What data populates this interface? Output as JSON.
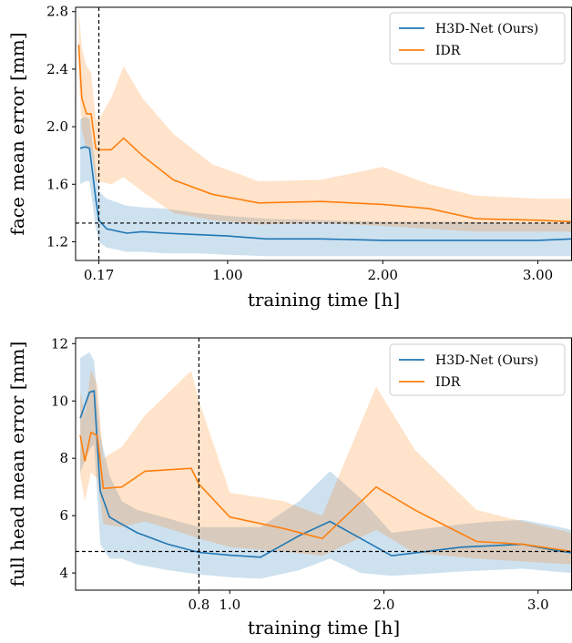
{
  "chart_data": [
    {
      "type": "line",
      "xlabel": "training time [h]",
      "ylabel": "face mean error [mm]",
      "xlim": [
        0.02,
        3.22
      ],
      "ylim": [
        1.07,
        2.83
      ],
      "xticks": [
        0.17,
        1.0,
        2.0,
        3.0
      ],
      "xtick_labels": [
        "0.17",
        "1.00",
        "2.00",
        "3.00"
      ],
      "yticks": [
        1.2,
        1.6,
        2.0,
        2.4,
        2.8
      ],
      "ytick_labels": [
        "1.2",
        "1.6",
        "2.0",
        "2.4",
        "2.8"
      ],
      "vline_x": 0.17,
      "hline_y": 1.33,
      "legend_position": "top-right",
      "series": [
        {
          "name": "H3D-Net (Ours)",
          "color": "#1f77b4",
          "x": [
            0.05,
            0.08,
            0.11,
            0.15,
            0.17,
            0.22,
            0.35,
            0.45,
            0.6,
            0.8,
            1.0,
            1.25,
            1.6,
            2.0,
            2.5,
            3.0,
            3.22
          ],
          "y": [
            1.85,
            1.86,
            1.85,
            1.5,
            1.35,
            1.29,
            1.26,
            1.27,
            1.26,
            1.25,
            1.24,
            1.22,
            1.22,
            1.21,
            1.21,
            1.21,
            1.22
          ],
          "lower": [
            1.6,
            1.62,
            1.62,
            1.3,
            1.2,
            1.16,
            1.13,
            1.13,
            1.12,
            1.12,
            1.11,
            1.1,
            1.1,
            1.1,
            1.1,
            1.1,
            1.1
          ],
          "upper": [
            2.05,
            2.07,
            2.05,
            1.7,
            1.55,
            1.5,
            1.45,
            1.44,
            1.43,
            1.4,
            1.38,
            1.36,
            1.35,
            1.34,
            1.34,
            1.33,
            1.33
          ]
        },
        {
          "name": "IDR",
          "color": "#ff7f0e",
          "x": [
            0.04,
            0.06,
            0.09,
            0.12,
            0.15,
            0.17,
            0.25,
            0.33,
            0.45,
            0.65,
            0.9,
            1.2,
            1.6,
            2.0,
            2.3,
            2.6,
            3.0,
            3.22
          ],
          "y": [
            2.57,
            2.2,
            2.09,
            2.09,
            1.85,
            1.84,
            1.84,
            1.92,
            1.8,
            1.63,
            1.53,
            1.47,
            1.48,
            1.46,
            1.43,
            1.36,
            1.35,
            1.34
          ],
          "lower": [
            2.35,
            1.98,
            1.85,
            1.85,
            1.62,
            1.62,
            1.6,
            1.65,
            1.55,
            1.4,
            1.35,
            1.32,
            1.33,
            1.31,
            1.29,
            1.27,
            1.27,
            1.27
          ],
          "upper": [
            2.82,
            2.55,
            2.42,
            2.38,
            2.05,
            2.05,
            2.2,
            2.42,
            2.2,
            1.95,
            1.74,
            1.62,
            1.63,
            1.72,
            1.6,
            1.52,
            1.5,
            1.5
          ]
        }
      ]
    },
    {
      "type": "line",
      "xlabel": "training time [h]",
      "ylabel": "full head mean error [mm]",
      "xlim": [
        0.0,
        3.22
      ],
      "ylim": [
        3.4,
        12.2
      ],
      "xticks": [
        0.8,
        1.0,
        2.0,
        3.0
      ],
      "xtick_labels": [
        "0.8",
        "1.0",
        "2.0",
        "3.0"
      ],
      "yticks": [
        4,
        6,
        8,
        10,
        12
      ],
      "ytick_labels": [
        "4",
        "6",
        "8",
        "10",
        "12"
      ],
      "vline_x": 0.8,
      "hline_y": 4.75,
      "legend_position": "top-right",
      "series": [
        {
          "name": "H3D-Net (Ours)",
          "color": "#1f77b4",
          "x": [
            0.03,
            0.09,
            0.12,
            0.16,
            0.22,
            0.3,
            0.4,
            0.6,
            0.8,
            1.0,
            1.2,
            1.45,
            1.65,
            1.85,
            2.05,
            2.2,
            2.5,
            2.7,
            2.9,
            3.1,
            3.22
          ],
          "y": [
            9.4,
            10.3,
            10.35,
            6.85,
            5.95,
            5.7,
            5.4,
            5.0,
            4.72,
            4.62,
            4.55,
            5.3,
            5.8,
            5.2,
            4.6,
            4.7,
            4.9,
            4.95,
            5.0,
            4.8,
            4.7
          ],
          "lower": [
            7.5,
            8.3,
            8.5,
            5.0,
            4.5,
            4.5,
            4.3,
            4.1,
            3.95,
            3.85,
            3.8,
            4.1,
            4.5,
            4.0,
            3.9,
            3.95,
            4.05,
            4.1,
            4.15,
            4.05,
            4.0
          ],
          "upper": [
            11.5,
            11.7,
            11.4,
            8.8,
            7.4,
            6.5,
            6.2,
            5.9,
            5.6,
            5.6,
            5.6,
            6.5,
            7.55,
            6.6,
            5.4,
            5.5,
            5.7,
            5.8,
            5.85,
            5.65,
            5.5
          ]
        },
        {
          "name": "IDR",
          "color": "#ff7f0e",
          "x": [
            0.03,
            0.06,
            0.1,
            0.14,
            0.18,
            0.3,
            0.45,
            0.75,
            0.8,
            1.0,
            1.35,
            1.6,
            1.95,
            2.2,
            2.6,
            2.9,
            3.22
          ],
          "y": [
            8.8,
            7.9,
            8.9,
            8.8,
            6.95,
            7.0,
            7.55,
            7.65,
            7.1,
            5.95,
            5.55,
            5.2,
            7.0,
            6.2,
            5.1,
            5.0,
            4.75
          ],
          "lower": [
            7.4,
            6.5,
            7.5,
            7.3,
            5.7,
            5.6,
            5.8,
            5.3,
            5.2,
            4.9,
            4.75,
            4.6,
            5.5,
            4.7,
            4.5,
            4.4,
            4.3
          ],
          "upper": [
            10.3,
            9.5,
            11.1,
            10.6,
            8.0,
            8.4,
            9.5,
            11.05,
            10.0,
            6.8,
            6.5,
            6.0,
            10.5,
            8.3,
            6.2,
            5.8,
            5.4
          ]
        }
      ]
    }
  ]
}
